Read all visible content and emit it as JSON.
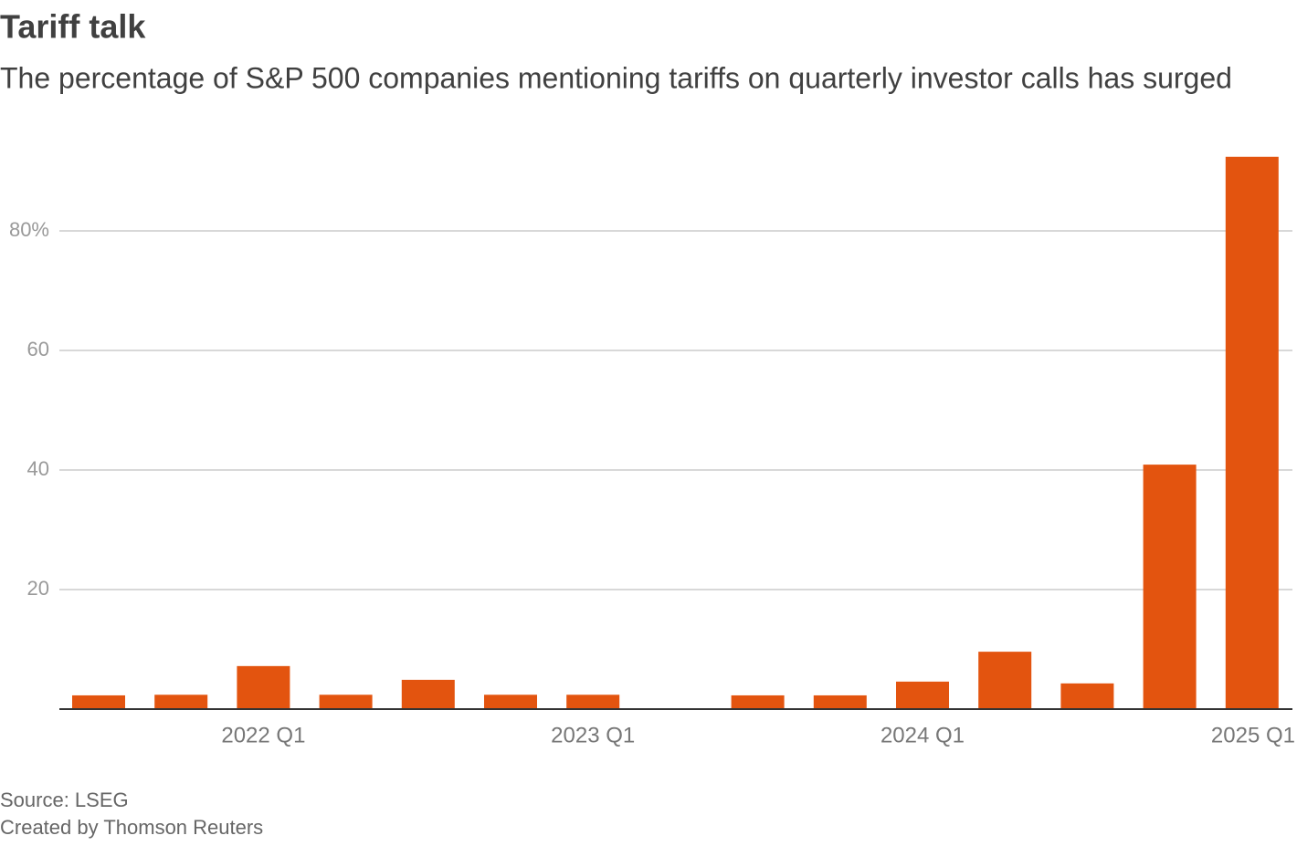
{
  "chart_data": {
    "type": "bar",
    "title": "Tariff talk",
    "subtitle": "The percentage of S&P 500 companies mentioning tariffs on quarterly investor calls has surged",
    "categories": [
      null,
      null,
      "2022 Q1",
      null,
      null,
      null,
      "2023 Q1",
      null,
      null,
      null,
      "2024 Q1",
      null,
      null,
      null,
      "2025 Q1"
    ],
    "values": [
      2.3,
      2.4,
      7.2,
      2.4,
      4.9,
      2.4,
      2.4,
      0,
      2.3,
      2.3,
      4.6,
      9.6,
      4.3,
      40.9,
      92.4
    ],
    "color": "#e3540f",
    "ylim": [
      0,
      93
    ],
    "yticks": [
      20,
      40,
      60,
      {
        "value": 80,
        "label": "80%"
      }
    ],
    "grid": true,
    "source": "Source: LSEG",
    "credit": "Created by Thomson Reuters"
  }
}
